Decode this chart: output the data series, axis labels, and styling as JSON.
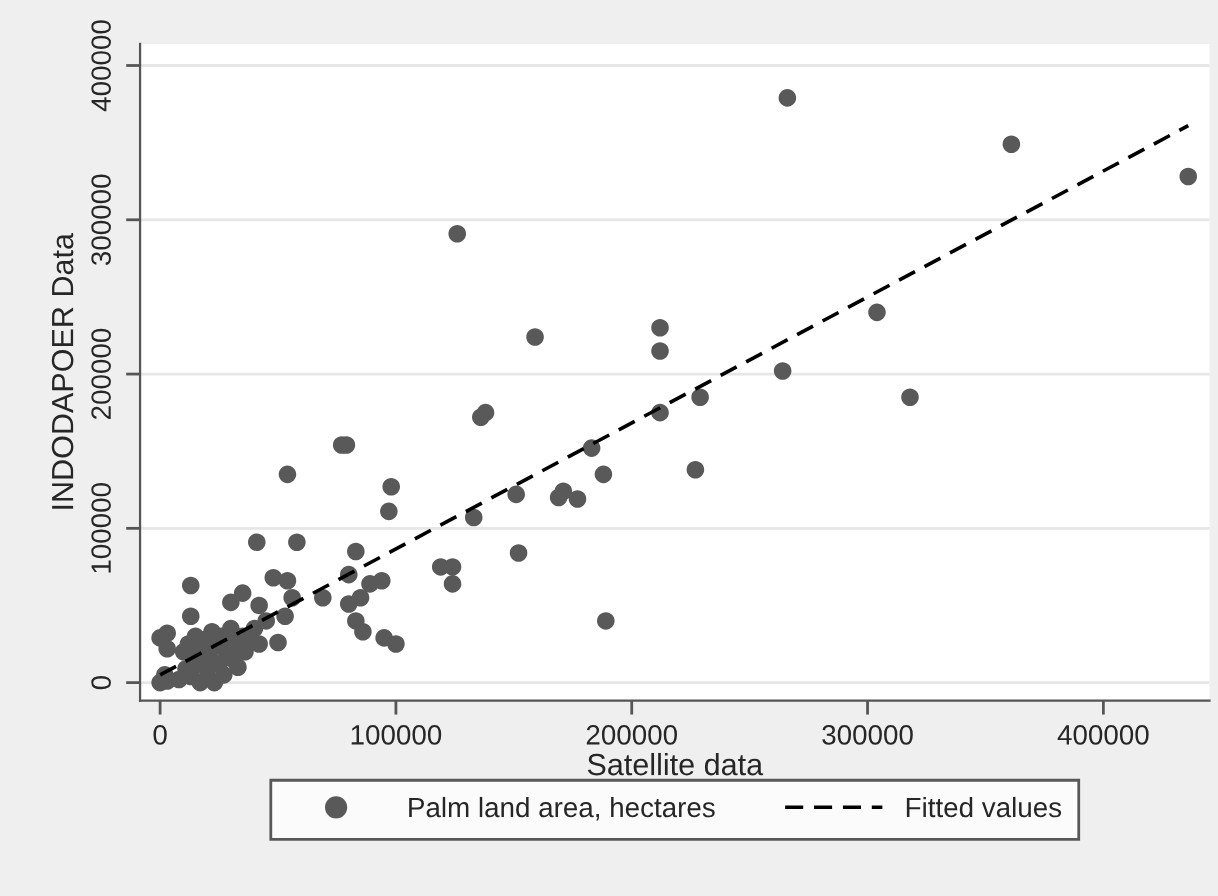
{
  "chart_data": {
    "type": "scatter",
    "xlabel": "Satellite data",
    "ylabel": "INDODAPOER Data",
    "xlim": [
      -8500,
      445000
    ],
    "ylim": [
      -11700,
      414000
    ],
    "xticks": [
      0,
      100000,
      200000,
      300000,
      400000
    ],
    "yticks": [
      0,
      100000,
      200000,
      300000,
      400000
    ],
    "grid": "y",
    "legend": "bottom",
    "series": [
      {
        "name": "Palm land area, hectares",
        "marker": "circle",
        "color": "#595959",
        "x": [
          266000,
          361000,
          436000,
          304000,
          318000,
          212000,
          212000,
          212000,
          229000,
          264000,
          227000,
          188000,
          189000,
          126000,
          159000,
          136000,
          138000,
          77000,
          79000,
          54000,
          98000,
          97000,
          183000,
          151000,
          169000,
          171000,
          177000,
          133000,
          152000,
          119000,
          124000,
          124000,
          41000,
          58000,
          83000,
          80000,
          48000,
          54000,
          89000,
          94000,
          13000,
          35000,
          30000,
          56000,
          42000,
          13000,
          69000,
          80000,
          85000,
          83000,
          86000,
          95000,
          100000,
          50000,
          53000,
          3000,
          0,
          0,
          2000,
          3000,
          8000,
          10000,
          11000,
          12000,
          13000,
          14000,
          15000,
          16000,
          17000,
          18000,
          19000,
          20000,
          21000,
          22000,
          23000,
          24000,
          25000,
          26000,
          27000,
          28000,
          30000,
          31000,
          32000,
          33000,
          35000,
          36000,
          38000,
          40000,
          42000,
          45000,
          3000
        ],
        "values": [
          379000,
          349000,
          328000,
          240000,
          185000,
          230000,
          215000,
          175000,
          185000,
          202000,
          138000,
          135000,
          40000,
          291000,
          224000,
          172000,
          175000,
          154000,
          154000,
          135000,
          127000,
          111000,
          152000,
          122000,
          120000,
          124000,
          119000,
          107000,
          84000,
          75000,
          75000,
          64000,
          91000,
          91000,
          85000,
          70000,
          68000,
          66000,
          64000,
          66000,
          63000,
          58000,
          52000,
          55000,
          50000,
          43000,
          55000,
          51000,
          55000,
          40000,
          33000,
          29000,
          25000,
          26000,
          43000,
          32000,
          29000,
          0,
          5000,
          1000,
          2000,
          20000,
          9000,
          25000,
          4000,
          18000,
          30000,
          12000,
          0,
          22000,
          28000,
          8000,
          16000,
          33000,
          0,
          24000,
          12000,
          30000,
          5000,
          20000,
          35000,
          15000,
          25000,
          10000,
          30000,
          20000,
          28000,
          35000,
          25000,
          40000,
          22000
        ]
      },
      {
        "name": "Fitted values",
        "type": "line",
        "line_style": "dashed",
        "color": "#000000",
        "x": [
          0,
          436000
        ],
        "values": [
          5000,
          361000
        ]
      }
    ]
  }
}
